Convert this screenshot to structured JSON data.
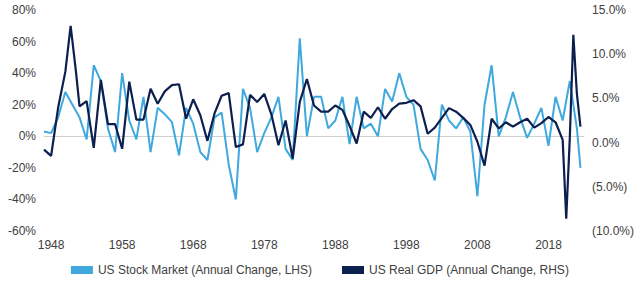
{
  "chart_data": {
    "type": "line",
    "xlim": [
      1947,
      2023
    ],
    "xticks": [
      1948,
      1958,
      1968,
      1978,
      1988,
      1998,
      2008,
      2018
    ],
    "ylim": [
      -60,
      80
    ],
    "yticks": [
      {
        "value": -60,
        "label": "-60%"
      },
      {
        "value": -40,
        "label": "-40%"
      },
      {
        "value": -20,
        "label": "-20%"
      },
      {
        "value": 0,
        "label": "0%"
      },
      {
        "value": 20,
        "label": "20%"
      },
      {
        "value": 40,
        "label": "40%"
      },
      {
        "value": 60,
        "label": "60%"
      },
      {
        "value": 80,
        "label": "80%"
      }
    ],
    "y2lim": [
      -10,
      15
    ],
    "y2ticks": [
      {
        "value": -10,
        "label": "(10.0%)"
      },
      {
        "value": -5,
        "label": "(5.0%)"
      },
      {
        "value": 0,
        "label": "0.0%"
      },
      {
        "value": 5,
        "label": "5.0%"
      },
      {
        "value": 10,
        "label": "10.0%"
      },
      {
        "value": 15,
        "label": "15.0%"
      }
    ],
    "grid": false,
    "legend": "bottom",
    "series": [
      {
        "name": "US Stock Market (Annual Change, LHS)",
        "color": "#3fa9de",
        "x": [
          1947,
          1948,
          1949,
          1950,
          1951,
          1952,
          1953,
          1954,
          1955,
          1956,
          1957,
          1958,
          1959,
          1960,
          1961,
          1962,
          1963,
          1964,
          1965,
          1966,
          1967,
          1968,
          1969,
          1970,
          1971,
          1972,
          1973,
          1974,
          1975,
          1976,
          1977,
          1978,
          1979,
          1980,
          1981,
          1982,
          1983,
          1984,
          1985,
          1986,
          1987,
          1988,
          1989,
          1990,
          1991,
          1992,
          1993,
          1994,
          1995,
          1996,
          1997,
          1998,
          1999,
          2000,
          2001,
          2002,
          2003,
          2004,
          2005,
          2006,
          2007,
          2008,
          2009,
          2010,
          2011,
          2012,
          2013,
          2014,
          2015,
          2016,
          2017,
          2018,
          2019,
          2020,
          2021,
          2022,
          2022.5
        ],
        "values": [
          3,
          2,
          12,
          28,
          20,
          12,
          -2,
          45,
          35,
          5,
          -10,
          40,
          10,
          -2,
          25,
          -10,
          18,
          14,
          9,
          -12,
          18,
          8,
          -10,
          -15,
          12,
          15,
          -18,
          -40,
          30,
          18,
          -10,
          2,
          12,
          25,
          -8,
          -15,
          62,
          0,
          25,
          25,
          5,
          10,
          25,
          -5,
          25,
          5,
          8,
          0,
          30,
          22,
          40,
          25,
          20,
          -8,
          -15,
          -28,
          20,
          10,
          5,
          12,
          3,
          -38,
          20,
          45,
          0,
          12,
          28,
          12,
          -1,
          8,
          18,
          -6,
          25,
          10,
          35,
          5,
          -20
        ]
      },
      {
        "name": "US Real GDP (Annual Change, RHS)",
        "color": "#0c1f4e",
        "axis": "y2",
        "x": [
          1947,
          1948,
          1949,
          1950,
          1950.75,
          1951.5,
          1952,
          1953,
          1954,
          1955,
          1956,
          1957,
          1958,
          1959,
          1960,
          1961,
          1962,
          1963,
          1964,
          1965,
          1966,
          1967,
          1968,
          1969,
          1970,
          1971,
          1972,
          1973,
          1974,
          1975,
          1976,
          1977,
          1978,
          1979,
          1980,
          1981,
          1982,
          1983,
          1984,
          1985,
          1986,
          1987,
          1988,
          1989,
          1990,
          1991,
          1992,
          1993,
          1994,
          1995,
          1996,
          1997,
          1998,
          1999,
          2000,
          2001,
          2002,
          2003,
          2004,
          2005,
          2006,
          2007,
          2008,
          2009,
          2010,
          2011,
          2012,
          2013,
          2014,
          2015,
          2016,
          2017,
          2018,
          2019,
          2020,
          2020.5,
          2021,
          2021.5,
          2022,
          2022.5
        ],
        "values": [
          -0.8,
          -1.5,
          4.0,
          8.0,
          13.2,
          8.0,
          4.1,
          4.7,
          -0.6,
          7.1,
          2.1,
          2.1,
          -0.7,
          6.9,
          2.6,
          2.6,
          6.1,
          4.4,
          5.8,
          6.5,
          6.6,
          2.7,
          4.9,
          3.1,
          0.2,
          3.3,
          5.3,
          5.6,
          -0.5,
          -0.2,
          5.4,
          4.6,
          5.5,
          3.2,
          -0.3,
          2.5,
          -1.8,
          4.6,
          7.2,
          4.2,
          3.5,
          3.5,
          4.2,
          3.7,
          1.9,
          -0.1,
          3.5,
          2.8,
          4.0,
          2.7,
          3.8,
          4.4,
          4.5,
          4.8,
          4.1,
          1.0,
          1.7,
          2.8,
          3.9,
          3.5,
          2.8,
          2.0,
          0.1,
          -2.6,
          2.7,
          1.6,
          2.3,
          1.8,
          2.3,
          2.7,
          1.7,
          2.2,
          2.9,
          2.3,
          0.3,
          -8.6,
          0.5,
          12.2,
          5.5,
          1.8
        ]
      }
    ]
  }
}
